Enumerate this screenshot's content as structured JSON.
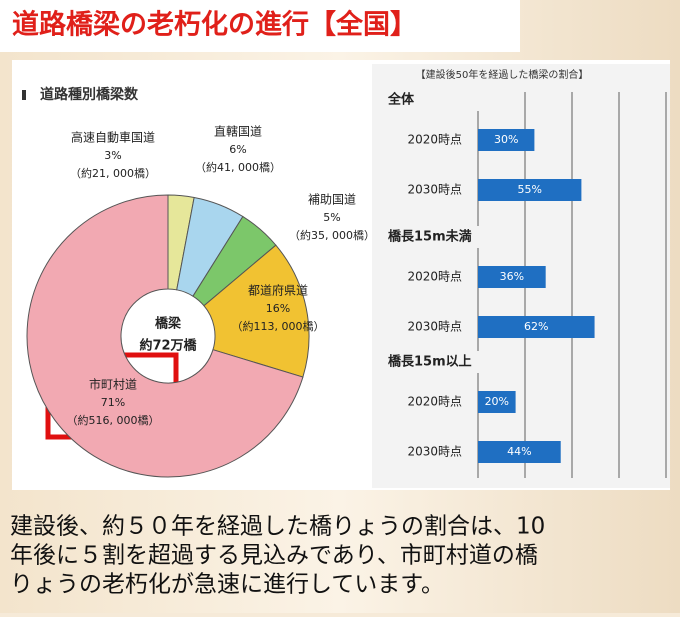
{
  "page_title": "道路橋梁の老朽化の進行【全国】",
  "chart_data": [
    {
      "type": "donut",
      "title": "道路種別橋梁数",
      "center_label": [
        "橋梁",
        "約72万橋"
      ],
      "categories": [
        "高速自動車国道",
        "直轄国道",
        "補助国道",
        "都道府県道",
        "市町村道"
      ],
      "values": [
        3,
        6,
        5,
        16,
        71
      ],
      "value_labels": [
        "3%",
        "6%",
        "5%",
        "16%",
        "71%"
      ],
      "count_labels": [
        "（約21, 000橋）",
        "（約41, 000橋）",
        "（約35, 000橋）",
        "（約113, 000橋）",
        "（約516, 000橋）"
      ],
      "colors": [
        "#e6e79a",
        "#a9d6ee",
        "#7cc76a",
        "#f1c232",
        "#f2a9b2"
      ]
    },
    {
      "type": "grouped-hbar",
      "title": "【建設後50年を経過した橋梁の割合】",
      "color": "#1f6fc2",
      "xlim": [
        0,
        100
      ],
      "xticks": [
        0,
        25,
        50,
        75,
        100
      ],
      "grid": true,
      "groups": [
        {
          "name": "全体",
          "categories": [
            "2020時点",
            "2030時点"
          ],
          "values": [
            30,
            55
          ],
          "value_labels": [
            "30%",
            "55%"
          ]
        },
        {
          "name": "橋長15m未満",
          "categories": [
            "2020時点",
            "2030時点"
          ],
          "values": [
            36,
            62
          ],
          "value_labels": [
            "36%",
            "62%"
          ]
        },
        {
          "name": "橋長15m以上",
          "categories": [
            "2020時点",
            "2030時点"
          ],
          "values": [
            20,
            44
          ],
          "value_labels": [
            "20%",
            "44%"
          ]
        }
      ]
    }
  ],
  "body_lines": [
    "建設後、約５０年を経過した橋りょうの割合は、10",
    "年後に５割を超過する見込みであり、市町村道の橋",
    "りょうの老朽化が急速に進行しています。"
  ]
}
